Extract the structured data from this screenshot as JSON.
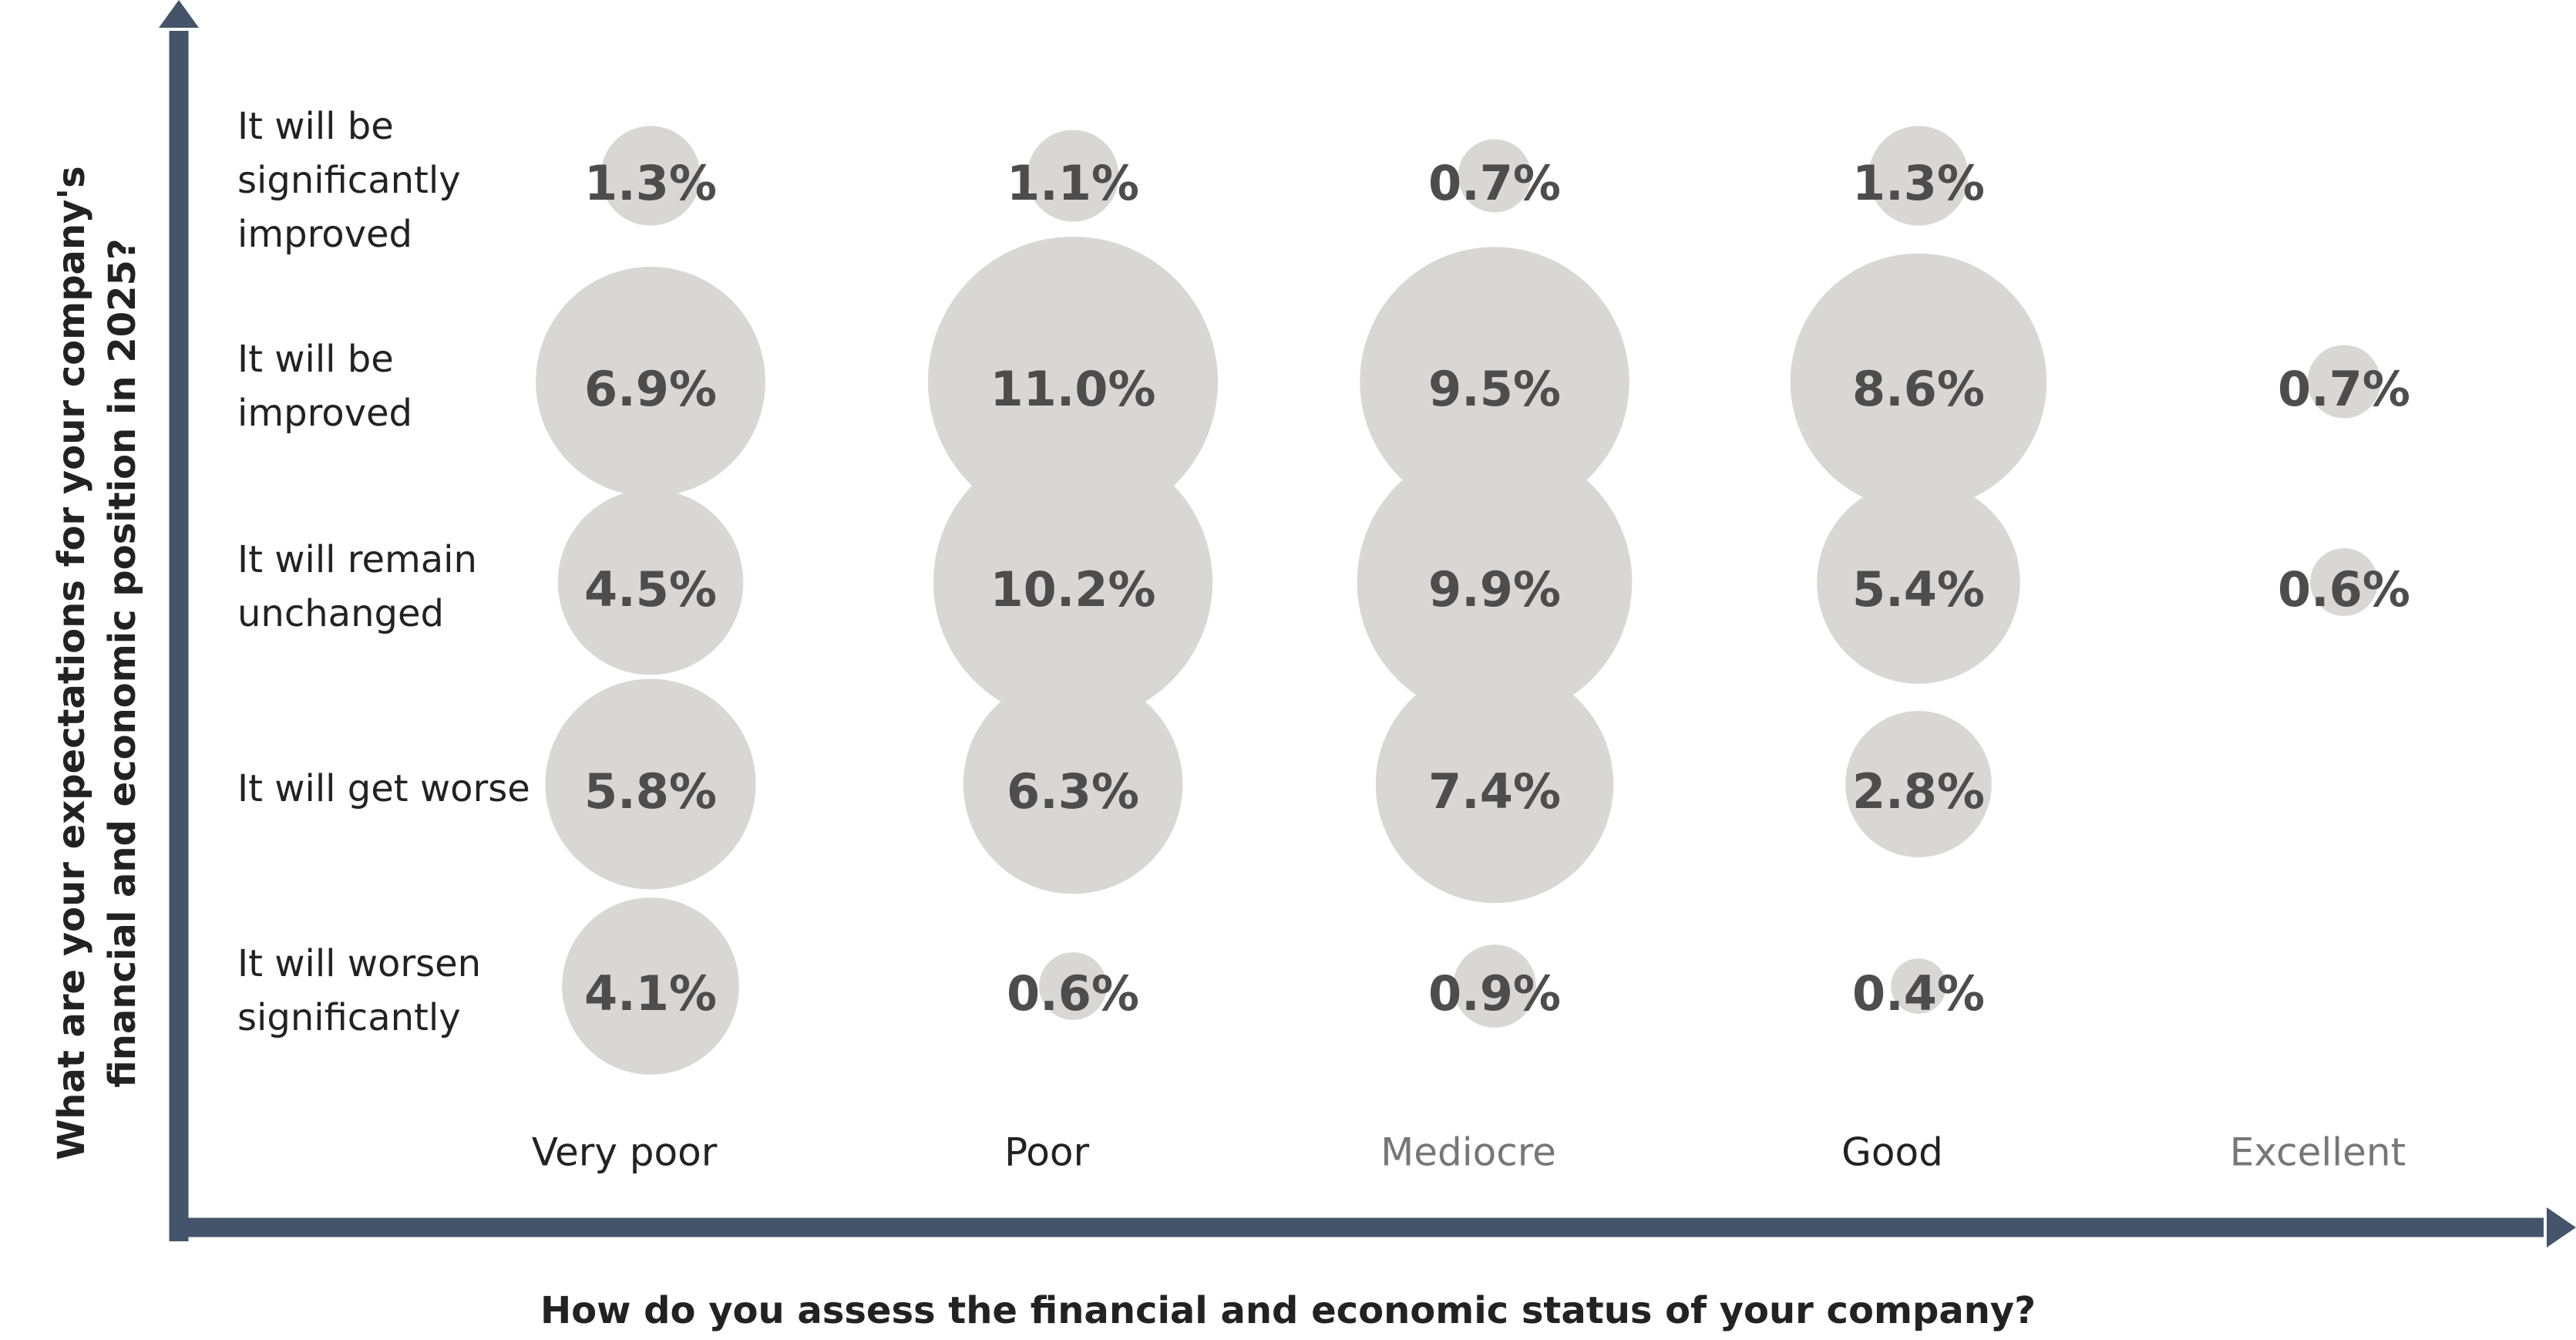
{
  "chart_data": {
    "type": "bubble",
    "x_label": "How do you assess the financial and economic status of your company?",
    "y_label": "What are your expectations for your company's financial and economic position in 2025?",
    "categories": [
      "Very poor",
      "Poor",
      "Mediocre",
      "Good",
      "Excellent"
    ],
    "category_colors": [
      "#222222",
      "#222222",
      "#777777",
      "#222222",
      "#777777"
    ],
    "rows": [
      "It will be significantly improved",
      "It will be improved",
      "It will remain unchanged",
      "It will get worse",
      "It will worsen significantly"
    ],
    "values": [
      [
        1.3,
        1.1,
        0.7,
        1.3,
        null
      ],
      [
        6.9,
        11.0,
        9.5,
        8.6,
        0.7
      ],
      [
        4.5,
        10.2,
        9.9,
        5.4,
        0.6
      ],
      [
        5.8,
        6.3,
        7.4,
        2.8,
        null
      ],
      [
        4.1,
        0.6,
        0.9,
        0.4,
        null
      ]
    ],
    "value_labels": [
      [
        "1.3%",
        "1.1%",
        "0.7%",
        "1.3%",
        null
      ],
      [
        "6.9%",
        "11.0%",
        "9.5%",
        "8.6%",
        "0.7%"
      ],
      [
        "4.5%",
        "10.2%",
        "9.9%",
        "5.4%",
        "0.6%"
      ],
      [
        "5.8%",
        "6.3%",
        "7.4%",
        "2.8%",
        null
      ],
      [
        "4.1%",
        "0.6%",
        "0.9%",
        "0.4%",
        null
      ]
    ],
    "color": "#d9d6d6",
    "axis_color": "#44546a"
  }
}
